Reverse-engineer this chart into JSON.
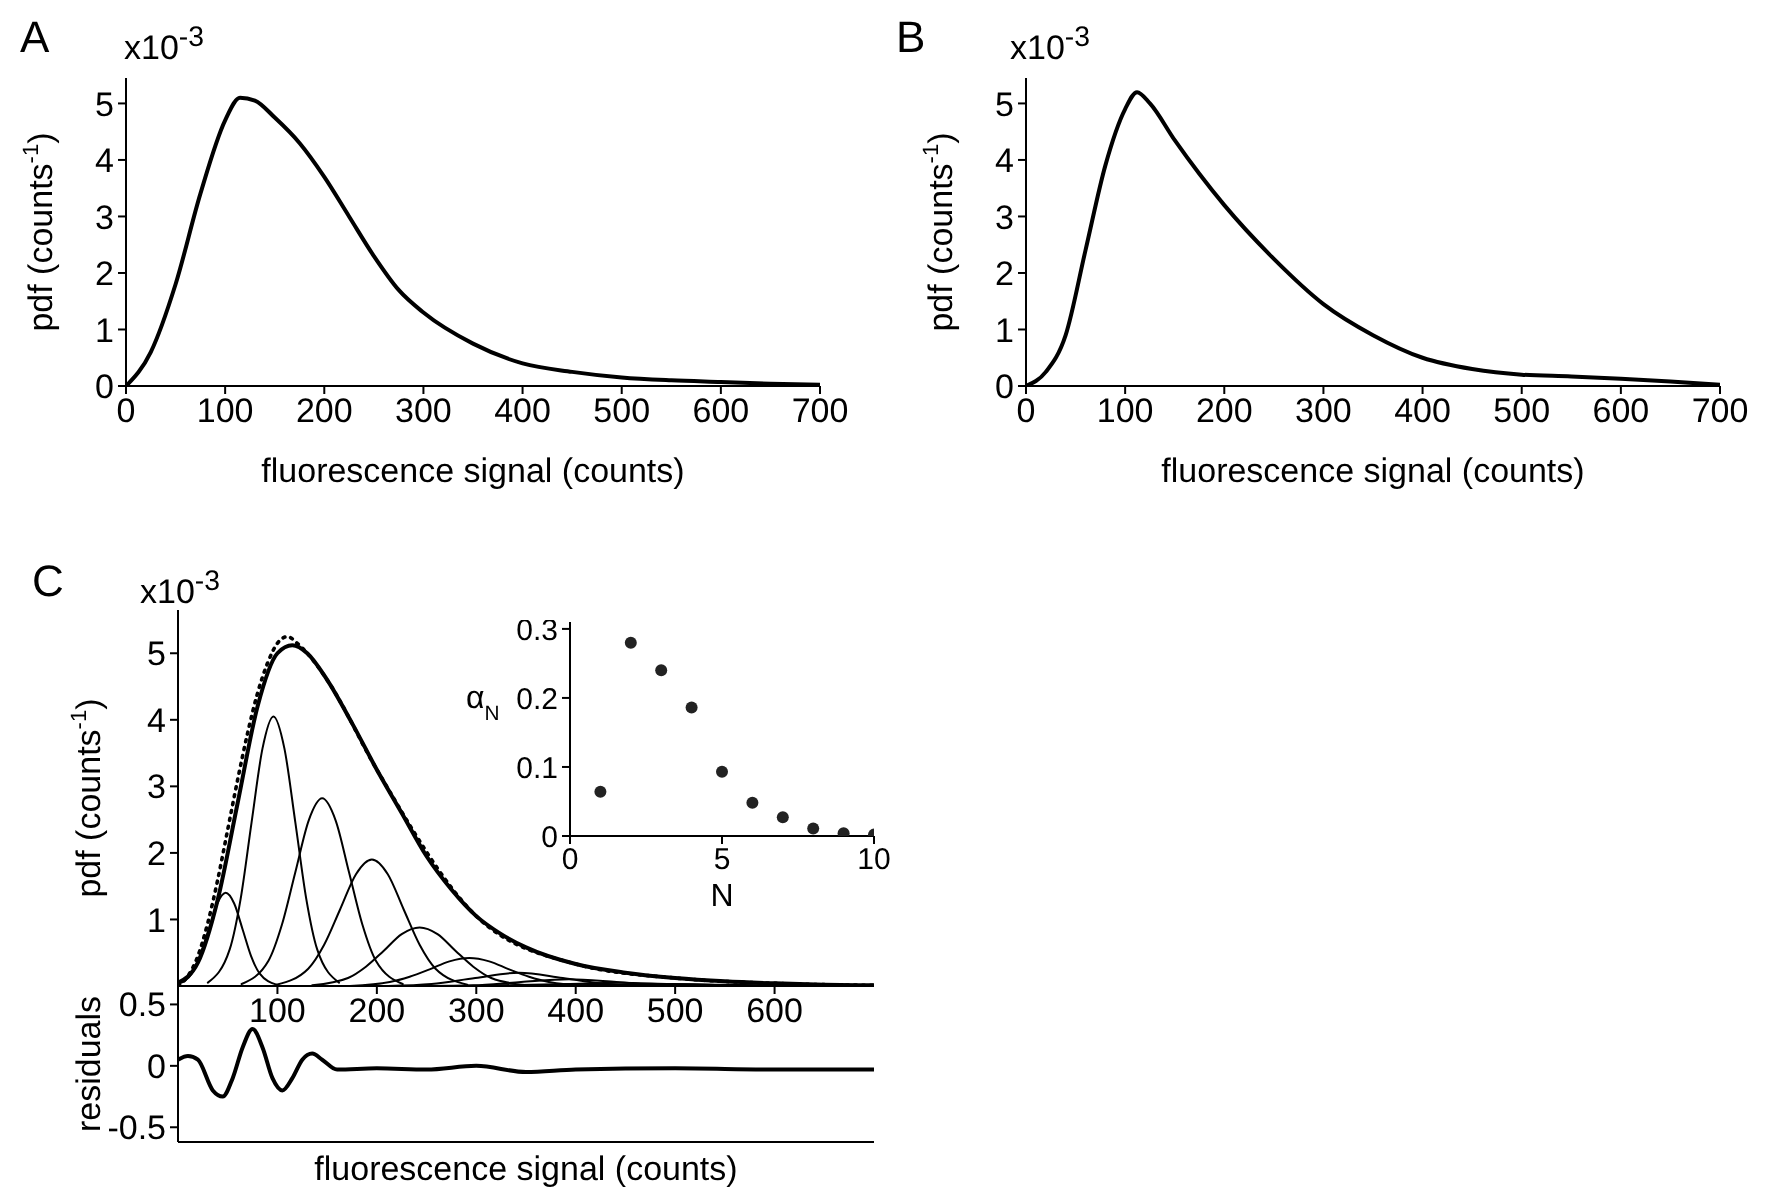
{
  "chart_data": [
    {
      "type": "line",
      "title": "A",
      "annotations": [
        "x10$^{-3}$"
      ],
      "xlabel": "fluorescence signal (counts)",
      "ylabel": "pdf (counts$^{-1}$)",
      "xlim": [
        0,
        700
      ],
      "ylim": [
        0,
        5.45
      ],
      "xticks": [
        0,
        100,
        200,
        300,
        400,
        500,
        600,
        700
      ],
      "yticks": [
        0,
        1,
        2,
        3,
        4,
        5
      ],
      "color": "#000000",
      "x": [
        0,
        25,
        50,
        75,
        100,
        115,
        130,
        150,
        175,
        200,
        225,
        250,
        275,
        300,
        350,
        400,
        450,
        500,
        550,
        600,
        650,
        700
      ],
      "values": [
        0,
        0.6,
        1.8,
        3.4,
        4.7,
        5.1,
        5.05,
        4.75,
        4.3,
        3.7,
        3.0,
        2.3,
        1.7,
        1.3,
        0.75,
        0.4,
        0.25,
        0.15,
        0.1,
        0.07,
        0.04,
        0.02
      ]
    },
    {
      "type": "line",
      "title": "B",
      "annotations": [
        "x10$^{-3}$"
      ],
      "xlabel": "fluorescence signal (counts)",
      "ylabel": "pdf (counts$^{-1}$)",
      "xlim": [
        0,
        700
      ],
      "ylim": [
        0,
        5.45
      ],
      "xticks": [
        0,
        100,
        200,
        300,
        400,
        500,
        600,
        700
      ],
      "yticks": [
        0,
        1,
        2,
        3,
        4,
        5
      ],
      "color": "#000000",
      "x": [
        0,
        20,
        40,
        60,
        80,
        100,
        112,
        125,
        150,
        175,
        200,
        250,
        300,
        350,
        400,
        450,
        500,
        550,
        600,
        650,
        700
      ],
      "values": [
        0,
        0.25,
        0.9,
        2.4,
        3.9,
        4.9,
        5.2,
        5.0,
        4.35,
        3.75,
        3.2,
        2.25,
        1.45,
        0.9,
        0.5,
        0.3,
        0.2,
        0.17,
        0.13,
        0.08,
        0.02
      ]
    },
    {
      "type": "line",
      "title": "C",
      "annotations": [
        "x10$^{-3}$"
      ],
      "ylabel": "pdf (counts$^{-1}$)",
      "xlim": [
        0,
        700
      ],
      "ylim": [
        0,
        5.65
      ],
      "xticks": [
        100,
        200,
        300,
        400,
        500,
        600
      ],
      "yticks": [
        1,
        2,
        3,
        4,
        5
      ],
      "series": [
        {
          "color": "#000000",
          "x": [
            0,
            20,
            40,
            60,
            80,
            100,
            115,
            130,
            150,
            175,
            200,
            225,
            250,
            275,
            300,
            325,
            350,
            400,
            450,
            500,
            550,
            600,
            650,
            700
          ],
          "values": [
            0.05,
            0.35,
            1.3,
            2.75,
            4.2,
            5.0,
            5.12,
            5.0,
            4.6,
            3.95,
            3.25,
            2.6,
            1.95,
            1.45,
            1.05,
            0.78,
            0.58,
            0.33,
            0.2,
            0.12,
            0.07,
            0.04,
            0.02,
            0.01
          ]
        },
        {
          "color": "#000000",
          "x": [
            0,
            14,
            31,
            39.5,
            48,
            56.5,
            65,
            73.5,
            82,
            99
          ],
          "values": [
            0.03,
            0.19,
            0.85,
            1.24,
            1.4,
            1.24,
            0.85,
            0.45,
            0.19,
            0.02
          ]
        },
        {
          "color": "#000000",
          "x": [
            30,
            52,
            63,
            74,
            85,
            96,
            107,
            118,
            129,
            140,
            162
          ],
          "values": [
            0.05,
            0.55,
            1.31,
            2.46,
            3.57,
            4.05,
            3.57,
            2.46,
            1.31,
            0.55,
            0.05
          ]
        },
        {
          "color": "#000000",
          "x": [
            64,
            91,
            104.5,
            118,
            131.5,
            145,
            158.5,
            172,
            185.5,
            199,
            226
          ],
          "values": [
            0.03,
            0.38,
            0.92,
            1.71,
            2.49,
            2.82,
            2.49,
            1.71,
            0.92,
            0.38,
            0.03
          ]
        },
        {
          "color": "#000000",
          "x": [
            99,
            131,
            147,
            163,
            179,
            195,
            211,
            227,
            243,
            259,
            291
          ],
          "values": [
            0.02,
            0.26,
            0.62,
            1.15,
            1.68,
            1.9,
            1.68,
            1.15,
            0.62,
            0.26,
            0.02
          ]
        },
        {
          "color": "#000000",
          "x": [
            135,
            171,
            189,
            207,
            225,
            243,
            261,
            279,
            297,
            315,
            351
          ],
          "values": [
            0.01,
            0.12,
            0.29,
            0.53,
            0.78,
            0.88,
            0.78,
            0.53,
            0.29,
            0.12,
            0.01
          ]
        },
        {
          "color": "#000000",
          "x": [
            173,
            213,
            233,
            253,
            273,
            293,
            313,
            333,
            353,
            373,
            413
          ],
          "values": [
            0.0,
            0.06,
            0.14,
            0.25,
            0.37,
            0.42,
            0.37,
            0.25,
            0.14,
            0.06,
            0.0
          ]
        },
        {
          "color": "#000000",
          "x": [
            211,
            255,
            299,
            343,
            387,
            431,
            475
          ],
          "values": [
            0.0,
            0.03,
            0.12,
            0.2,
            0.12,
            0.03,
            0.0
          ]
        },
        {
          "color": "#000000",
          "x": [
            249,
            297,
            345,
            393,
            441,
            489,
            537
          ],
          "values": [
            0.0,
            0.01,
            0.06,
            0.1,
            0.06,
            0.01,
            0.0
          ]
        },
        {
          "color": "#000000",
          "x": [
            287,
            391,
            443,
            495,
            599
          ],
          "values": [
            0.0,
            0.03,
            0.05,
            0.03,
            0.0
          ]
        },
        {
          "color": "#000000",
          "x": [
            328,
            438,
            493,
            548,
            658
          ],
          "values": [
            0.0,
            0.02,
            0.03,
            0.02,
            0.0
          ]
        },
        {
          "color": "#000000",
          "line_style": "dotted",
          "x": [
            0,
            10,
            20,
            30,
            40,
            50,
            60,
            70,
            80,
            90,
            100,
            110,
            120,
            130,
            150,
            200,
            300,
            400,
            500,
            600,
            700
          ],
          "values": [
            0,
            0.15,
            0.45,
            0.95,
            1.6,
            2.35,
            3.1,
            3.8,
            4.4,
            4.85,
            5.15,
            5.25,
            5.15,
            5.0,
            4.6,
            3.25,
            1.05,
            0.33,
            0.12,
            0.04,
            0.01
          ]
        }
      ]
    },
    {
      "type": "scatter",
      "xlabel": "N",
      "ylabel": "α$_{N}$",
      "xlim": [
        0,
        10
      ],
      "ylim": [
        0,
        0.31
      ],
      "xticks": [
        0,
        5,
        10
      ],
      "yticks": [
        0,
        0.1,
        0.2,
        0.3
      ],
      "marker": "circle",
      "color": "#222222",
      "x": [
        1,
        2,
        3,
        4,
        5,
        6,
        7,
        8,
        9,
        10
      ],
      "values": [
        0.064,
        0.28,
        0.24,
        0.186,
        0.093,
        0.048,
        0.027,
        0.011,
        0.004,
        0.002
      ]
    },
    {
      "type": "line",
      "xlabel": "fluorescence signal (counts)",
      "ylabel": "residuals",
      "xlim": [
        0,
        700
      ],
      "ylim": [
        -0.62,
        0.65
      ],
      "yticks": [
        -0.5,
        0,
        0.5
      ],
      "tick_labels": "y",
      "color": "#000000",
      "x": [
        0,
        10,
        20,
        35,
        45,
        55,
        65,
        75,
        85,
        95,
        105,
        115,
        125,
        135,
        145,
        160,
        200,
        250,
        300,
        350,
        400,
        500,
        600,
        700
      ],
      "values": [
        0.05,
        0.08,
        0.05,
        -0.2,
        -0.25,
        -0.1,
        0.15,
        0.3,
        0.15,
        -0.1,
        -0.2,
        -0.1,
        0.05,
        0.1,
        0.05,
        -0.03,
        -0.02,
        -0.03,
        0.0,
        -0.05,
        -0.03,
        -0.02,
        -0.03,
        -0.03
      ]
    }
  ]
}
